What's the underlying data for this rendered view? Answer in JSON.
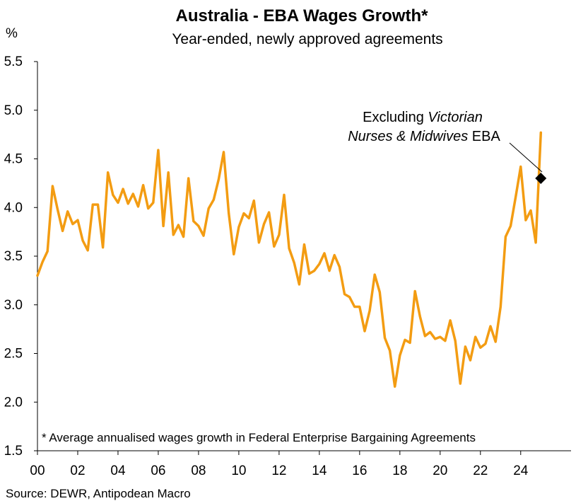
{
  "chart_data": {
    "type": "line",
    "title": "Australia - EBA Wages Growth*",
    "subtitle": "Year-ended, newly approved agreements",
    "y_unit": "%",
    "ylim": [
      1.5,
      5.5
    ],
    "y_ticks": [
      "1.5",
      "2.0",
      "2.5",
      "3.0",
      "3.5",
      "4.0",
      "4.5",
      "5.0",
      "5.5"
    ],
    "xlim": [
      2000,
      2026.5
    ],
    "x_ticks": [
      "00",
      "02",
      "04",
      "06",
      "08",
      "10",
      "12",
      "14",
      "16",
      "18",
      "20",
      "22",
      "24"
    ],
    "grid": false,
    "line_color": "#F39C12",
    "series": [
      {
        "x": [
          2000.0,
          2000.25,
          2000.5,
          2000.75,
          2001.0,
          2001.25,
          2001.5,
          2001.75,
          2002.0,
          2002.25,
          2002.5,
          2002.75,
          2003.0,
          2003.25,
          2003.5,
          2003.75,
          2004.0,
          2004.25,
          2004.5,
          2004.75,
          2005.0,
          2005.25,
          2005.5,
          2005.75,
          2006.0,
          2006.25,
          2006.5,
          2006.75,
          2007.0,
          2007.25,
          2007.5,
          2007.75,
          2008.0,
          2008.25,
          2008.5,
          2008.75,
          2009.0,
          2009.25,
          2009.5,
          2009.75,
          2010.0,
          2010.25,
          2010.5,
          2010.75,
          2011.0,
          2011.25,
          2011.5,
          2011.75,
          2012.0,
          2012.25,
          2012.5,
          2012.75,
          2013.0,
          2013.25,
          2013.5,
          2013.75,
          2014.0,
          2014.25,
          2014.5,
          2014.75,
          2015.0,
          2015.25,
          2015.5,
          2015.75,
          2016.0,
          2016.25,
          2016.5,
          2016.75,
          2017.0,
          2017.25,
          2017.5,
          2017.75,
          2018.0,
          2018.25,
          2018.5,
          2018.75,
          2019.0,
          2019.25,
          2019.5,
          2019.75,
          2020.0,
          2020.25,
          2020.5,
          2020.75,
          2021.0,
          2021.25,
          2021.5,
          2021.75,
          2022.0,
          2022.25,
          2022.5,
          2022.75,
          2023.0,
          2023.25,
          2023.5,
          2023.75,
          2024.0,
          2024.25,
          2024.5,
          2024.75,
          2025.0
        ],
        "values": [
          3.3,
          3.44,
          3.55,
          4.22,
          3.98,
          3.76,
          3.96,
          3.83,
          3.87,
          3.66,
          3.56,
          4.03,
          4.03,
          3.59,
          4.36,
          4.13,
          4.05,
          4.19,
          4.04,
          4.14,
          4.01,
          4.23,
          3.99,
          4.05,
          4.59,
          3.81,
          4.36,
          3.72,
          3.82,
          3.7,
          4.3,
          3.86,
          3.81,
          3.71,
          3.99,
          4.08,
          4.29,
          4.57,
          3.94,
          3.52,
          3.8,
          3.94,
          3.89,
          4.07,
          3.64,
          3.83,
          3.95,
          3.6,
          3.72,
          4.13,
          3.58,
          3.43,
          3.21,
          3.62,
          3.32,
          3.35,
          3.42,
          3.53,
          3.35,
          3.51,
          3.39,
          3.11,
          3.08,
          2.98,
          2.98,
          2.73,
          2.94,
          3.31,
          3.13,
          2.66,
          2.53,
          2.16,
          2.48,
          2.64,
          2.61,
          3.14,
          2.88,
          2.68,
          2.72,
          2.65,
          2.67,
          2.63,
          2.84,
          2.63,
          2.19,
          2.57,
          2.43,
          2.67,
          2.56,
          2.6,
          2.78,
          2.62,
          2.98,
          3.7,
          3.81,
          4.11,
          4.42,
          3.87,
          3.97,
          3.64,
          4.77
        ]
      }
    ],
    "highlight_point": {
      "x": 2025.0,
      "value": 4.3
    },
    "annotation": {
      "line1_prefix": "Excluding ",
      "line1_italic": "Victorian",
      "line2_italic": "Nurses & Midwives",
      "line2_suffix": " EBA"
    },
    "footnote": "* Average annualised wages growth in Federal Enterprise Bargaining Agreements"
  },
  "source": "Source: DEWR, Antipodean Macro"
}
